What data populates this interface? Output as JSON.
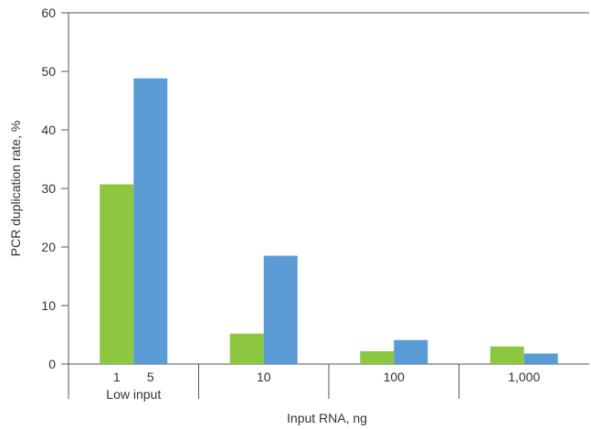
{
  "chart_data": {
    "type": "bar",
    "xlabel": "Input RNA, ng",
    "ylabel": "PCR duplication rate, %",
    "ylim": [
      0,
      60
    ],
    "yticks": [
      0,
      10,
      20,
      30,
      40,
      50,
      60
    ],
    "grid": false,
    "groups": [
      {
        "label": "1    5",
        "sublabel": "Low input",
        "values": [
          30.7,
          48.8
        ]
      },
      {
        "label": "10",
        "sublabel": "",
        "values": [
          5.2,
          18.5
        ]
      },
      {
        "label": "100",
        "sublabel": "",
        "values": [
          2.2,
          4.1
        ]
      },
      {
        "label": "1,000",
        "sublabel": "",
        "values": [
          3.0,
          1.8
        ]
      }
    ],
    "series_colors": [
      "#8dc63f",
      "#5b9bd5"
    ]
  }
}
